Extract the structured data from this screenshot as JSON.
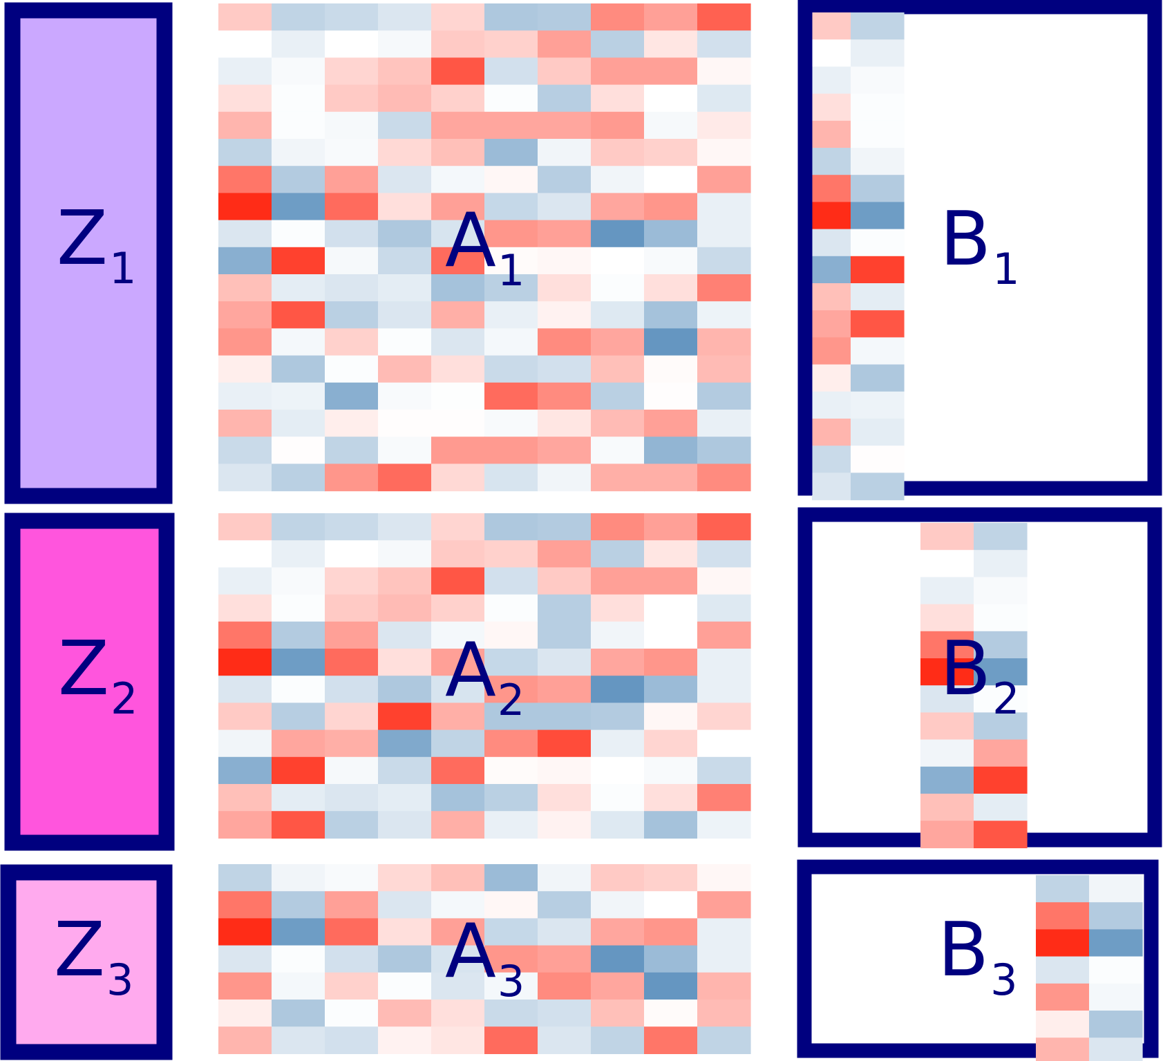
{
  "colors": {
    "frame": "#00007f",
    "z1": "#cba8ff",
    "z2": "#ff55dd",
    "z3": "#ffaaee",
    "heat_neg_max": "#4a84b6",
    "heat_mid": "#ffffff",
    "heat_pos_max": "#ff2c17"
  },
  "labels": {
    "z1": {
      "main": "Z",
      "sub": "1"
    },
    "z2": {
      "main": "Z",
      "sub": "2"
    },
    "z3": {
      "main": "Z",
      "sub": "3"
    },
    "a1": {
      "main": "A",
      "sub": "1"
    },
    "a2": {
      "main": "A",
      "sub": "2"
    },
    "a3": {
      "main": "A",
      "sub": "3"
    },
    "b1": {
      "main": "B",
      "sub": "1"
    },
    "b2": {
      "main": "B",
      "sub": "2"
    },
    "b3": {
      "main": "B",
      "sub": "3"
    }
  },
  "matrices": {
    "A1": [
      [
        0.25,
        -0.35,
        -0.3,
        -0.2,
        0.2,
        -0.45,
        -0.42,
        0.55,
        0.45,
        0.75
      ],
      [
        0,
        -0.12,
        0,
        -0.05,
        0.25,
        0.22,
        0.45,
        -0.38,
        0.12,
        -0.25
      ],
      [
        -0.12,
        -0.04,
        0.2,
        0.28,
        0.8,
        -0.25,
        0.25,
        0.45,
        0.45,
        0.04
      ],
      [
        0.15,
        -0.02,
        0.25,
        0.32,
        0.22,
        -0.02,
        -0.4,
        0.15,
        0,
        -0.18
      ],
      [
        0.35,
        -0.02,
        -0.05,
        -0.3,
        0.42,
        0.42,
        0.42,
        0.48,
        -0.05,
        0.1
      ],
      [
        -0.35,
        -0.08,
        -0.04,
        0.18,
        0.3,
        -0.55,
        -0.08,
        0.25,
        0.22,
        0.04
      ],
      [
        0.65,
        -0.42,
        0.45,
        -0.2,
        -0.06,
        0.04,
        -0.4,
        -0.08,
        0,
        0.45
      ],
      [
        1,
        -0.8,
        0.7,
        0.15,
        0.45,
        -0.32,
        -0.2,
        0.42,
        0.5,
        -0.12
      ],
      [
        -0.2,
        -0.02,
        -0.25,
        -0.45,
        -0.22,
        0.5,
        0.45,
        -0.85,
        -0.55,
        -0.12
      ],
      [
        -0.65,
        0.9,
        -0.05,
        -0.3,
        0.7,
        0.02,
        0.04,
        0,
        -0.04,
        -0.3
      ],
      [
        0.3,
        -0.15,
        -0.2,
        -0.15,
        -0.5,
        -0.38,
        0.15,
        -0.02,
        0.15,
        0.6
      ],
      [
        0.42,
        0.8,
        -0.38,
        -0.2,
        0.38,
        -0.12,
        0.06,
        -0.18,
        -0.5,
        -0.1
      ],
      [
        0.5,
        -0.06,
        0.22,
        -0.02,
        -0.2,
        -0.06,
        0.55,
        0.42,
        -0.85,
        0.35
      ],
      [
        0.08,
        -0.45,
        -0.02,
        0.32,
        0.15,
        -0.3,
        -0.25,
        0.3,
        0.02,
        0.32
      ],
      [
        -0.12,
        -0.1,
        -0.65,
        -0.04,
        -0.01,
        0.7,
        0.55,
        -0.38,
        0.01,
        -0.42
      ],
      [
        0.35,
        -0.15,
        0.08,
        0.01,
        0.01,
        -0.04,
        0.12,
        0.32,
        0.45,
        -0.12
      ],
      [
        -0.3,
        0.01,
        -0.35,
        -0.04,
        0.48,
        0.48,
        0.42,
        -0.04,
        -0.6,
        -0.45
      ],
      [
        -0.2,
        -0.38,
        0.5,
        0.7,
        0.18,
        -0.22,
        -0.08,
        0.38,
        0.38,
        0.55
      ]
    ],
    "A2": [
      [
        0.25,
        -0.35,
        -0.3,
        -0.2,
        0.2,
        -0.45,
        -0.42,
        0.55,
        0.45,
        0.75
      ],
      [
        0,
        -0.12,
        0,
        -0.05,
        0.25,
        0.22,
        0.45,
        -0.38,
        0.12,
        -0.25
      ],
      [
        -0.12,
        -0.04,
        0.2,
        0.28,
        0.8,
        -0.25,
        0.25,
        0.45,
        0.45,
        0.04
      ],
      [
        0.15,
        -0.02,
        0.25,
        0.32,
        0.22,
        -0.02,
        -0.4,
        0.15,
        0,
        -0.18
      ],
      [
        0.65,
        -0.42,
        0.45,
        -0.2,
        -0.06,
        0.04,
        -0.4,
        -0.08,
        0,
        0.45
      ],
      [
        1,
        -0.8,
        0.7,
        0.15,
        0.45,
        -0.32,
        -0.2,
        0.42,
        0.5,
        -0.12
      ],
      [
        -0.2,
        -0.02,
        -0.25,
        -0.45,
        -0.22,
        0.5,
        0.45,
        -0.85,
        -0.55,
        -0.12
      ],
      [
        0.25,
        -0.4,
        0.2,
        0.9,
        0.38,
        -0.45,
        -0.45,
        -0.42,
        0.04,
        0.2
      ],
      [
        -0.08,
        0.42,
        0.38,
        -0.7,
        -0.35,
        0.55,
        0.85,
        -0.12,
        0.2,
        0
      ],
      [
        -0.65,
        0.9,
        -0.05,
        -0.3,
        0.7,
        0.02,
        0.04,
        0,
        -0.04,
        -0.3
      ],
      [
        0.3,
        -0.15,
        -0.2,
        -0.15,
        -0.5,
        -0.38,
        0.15,
        -0.02,
        0.15,
        0.6
      ],
      [
        0.42,
        0.8,
        -0.38,
        -0.2,
        0.38,
        -0.12,
        0.06,
        -0.18,
        -0.5,
        -0.1
      ]
    ],
    "A3": [
      [
        -0.35,
        -0.08,
        -0.04,
        0.18,
        0.3,
        -0.55,
        -0.08,
        0.25,
        0.22,
        0.04
      ],
      [
        0.65,
        -0.42,
        0.45,
        -0.2,
        -0.06,
        0.04,
        -0.4,
        -0.08,
        0,
        0.45
      ],
      [
        1,
        -0.8,
        0.7,
        0.15,
        0.45,
        -0.32,
        -0.2,
        0.42,
        0.5,
        -0.12
      ],
      [
        -0.2,
        -0.02,
        -0.25,
        -0.45,
        -0.22,
        0.5,
        0.45,
        -0.85,
        -0.55,
        -0.12
      ],
      [
        0.5,
        -0.06,
        0.22,
        -0.02,
        -0.2,
        -0.06,
        0.55,
        0.42,
        -0.85,
        0.35
      ],
      [
        0.08,
        -0.45,
        -0.02,
        0.32,
        0.15,
        -0.3,
        -0.25,
        0.3,
        0.02,
        0.32
      ],
      [
        0.35,
        -0.2,
        -0.25,
        0.06,
        0.12,
        0.7,
        -0.2,
        -0.35,
        0.65,
        -0.35
      ]
    ],
    "B1": [
      [
        0.25,
        -0.35
      ],
      [
        0,
        -0.12
      ],
      [
        -0.12,
        -0.04
      ],
      [
        0.15,
        -0.02
      ],
      [
        0.35,
        -0.02
      ],
      [
        -0.35,
        -0.08
      ],
      [
        0.65,
        -0.42
      ],
      [
        1,
        -0.8
      ],
      [
        -0.2,
        -0.02
      ],
      [
        -0.65,
        0.9
      ],
      [
        0.3,
        -0.15
      ],
      [
        0.42,
        0.8
      ],
      [
        0.5,
        -0.06
      ],
      [
        0.08,
        -0.45
      ],
      [
        -0.12,
        -0.1
      ],
      [
        0.35,
        -0.15
      ],
      [
        -0.3,
        0.01
      ],
      [
        -0.2,
        -0.38
      ]
    ],
    "B2": [
      [
        0.25,
        -0.35
      ],
      [
        0,
        -0.12
      ],
      [
        -0.12,
        -0.04
      ],
      [
        0.15,
        -0.02
      ],
      [
        0.65,
        -0.42
      ],
      [
        1,
        -0.8
      ],
      [
        -0.2,
        -0.02
      ],
      [
        0.25,
        -0.4
      ],
      [
        -0.08,
        0.42
      ],
      [
        -0.65,
        0.9
      ],
      [
        0.3,
        -0.15
      ],
      [
        0.42,
        0.8
      ]
    ],
    "B3": [
      [
        -0.35,
        -0.08
      ],
      [
        0.65,
        -0.42
      ],
      [
        1,
        -0.8
      ],
      [
        -0.2,
        -0.02
      ],
      [
        0.5,
        -0.06
      ],
      [
        0.08,
        -0.45
      ],
      [
        0.35,
        -0.2
      ]
    ]
  }
}
